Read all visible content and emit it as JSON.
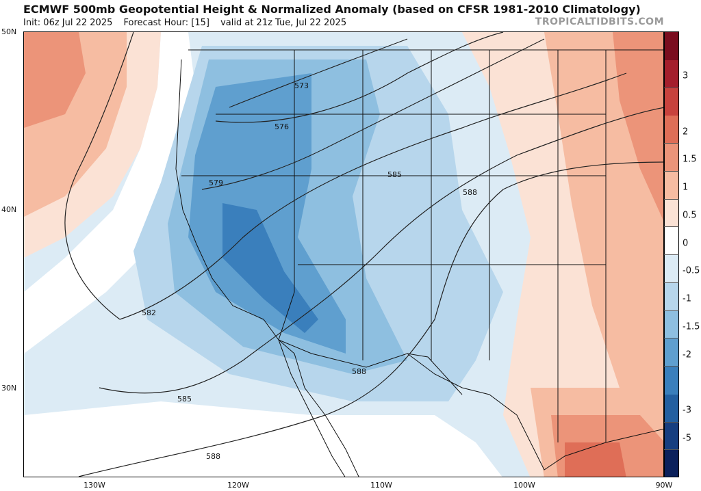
{
  "header": {
    "title": "ECMWF 500mb Geopotential Height & Normalized Anomaly (based on CFSR 1981-2010 Climatology)",
    "init": "Init: 06z Jul 22 2025",
    "forecast_hour": "Forecast Hour: [15]",
    "valid": "valid at 21z Tue, Jul 22 2025",
    "brand": "TROPICALTIDBITS.COM"
  },
  "map": {
    "lat_labels": [
      "50N",
      "40N",
      "30N"
    ],
    "lon_labels": [
      "130W",
      "120W",
      "110W",
      "100W",
      "90W"
    ],
    "contour_labels": [
      "573",
      "576",
      "579",
      "582",
      "585",
      "585",
      "588",
      "588",
      "588"
    ]
  },
  "colorbar": {
    "labels": [
      "3",
      "2",
      "1.5",
      "1",
      "0.5",
      "0",
      "-0.5",
      "-1",
      "-1.5",
      "-2",
      "-3",
      "-5"
    ],
    "colors": [
      "#7a0d1f",
      "#a41e2c",
      "#c8423d",
      "#df6e57",
      "#ec9479",
      "#f6bca2",
      "#fbe2d5",
      "#ffffff",
      "#dcebf5",
      "#b7d6ec",
      "#8ebfe0",
      "#5f9fcf",
      "#3a7fbc",
      "#235fa0",
      "#163e80",
      "#0c215c"
    ]
  }
}
